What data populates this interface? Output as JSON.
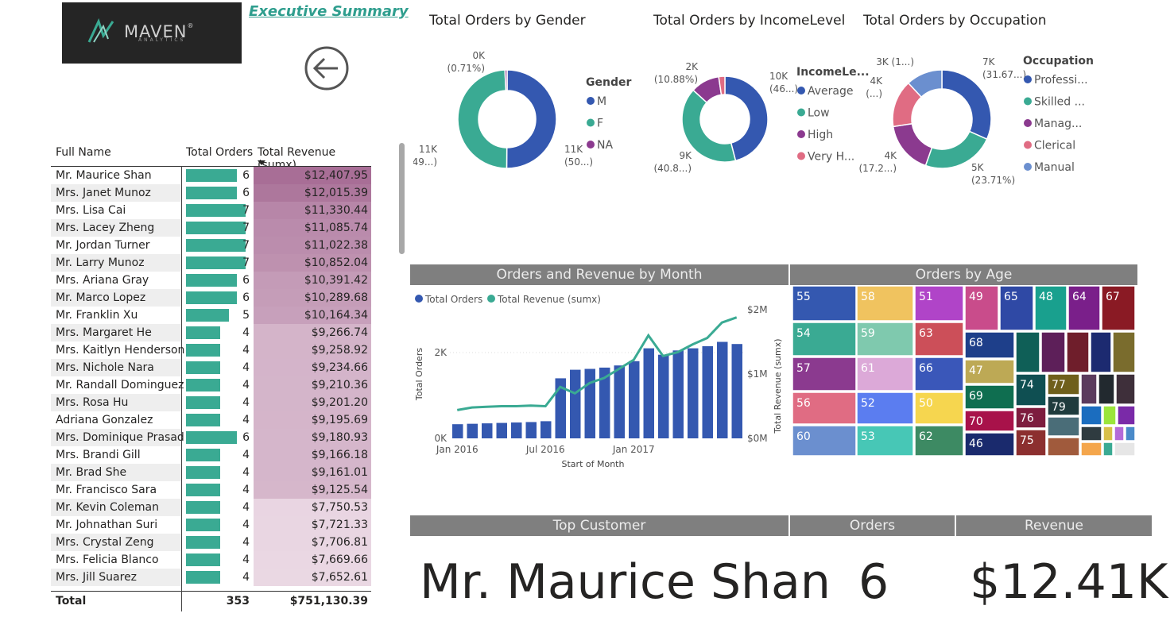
{
  "header": {
    "logo_text": "MAVEN",
    "logo_sub": "ANALYTICS",
    "link": "Executive Summary"
  },
  "colors": {
    "teal": "#3aaa93",
    "blue": "#3458b0",
    "purple": "#8b3a8f",
    "pink": "#e06c83",
    "lightblue": "#6b8fcf",
    "header_gray": "#7f7f7f"
  },
  "table": {
    "headers": [
      "Full Name",
      "Total Orders",
      "Total Revenue (sumx)"
    ],
    "rows": [
      {
        "name": "Mr. Maurice Shan",
        "orders": 6,
        "revenue": "$12,407.95",
        "rev_value": 12407.95
      },
      {
        "name": "Mrs. Janet Munoz",
        "orders": 6,
        "revenue": "$12,015.39",
        "rev_value": 12015.39
      },
      {
        "name": "Mrs. Lisa Cai",
        "orders": 7,
        "revenue": "$11,330.44",
        "rev_value": 11330.44
      },
      {
        "name": "Mrs. Lacey Zheng",
        "orders": 7,
        "revenue": "$11,085.74",
        "rev_value": 11085.74
      },
      {
        "name": "Mr. Jordan Turner",
        "orders": 7,
        "revenue": "$11,022.38",
        "rev_value": 11022.38
      },
      {
        "name": "Mr. Larry Munoz",
        "orders": 7,
        "revenue": "$10,852.04",
        "rev_value": 10852.04
      },
      {
        "name": "Mrs. Ariana Gray",
        "orders": 6,
        "revenue": "$10,391.42",
        "rev_value": 10391.42
      },
      {
        "name": "Mr. Marco Lopez",
        "orders": 6,
        "revenue": "$10,289.68",
        "rev_value": 10289.68
      },
      {
        "name": "Mr. Franklin Xu",
        "orders": 5,
        "revenue": "$10,164.34",
        "rev_value": 10164.34
      },
      {
        "name": "Mrs. Margaret He",
        "orders": 4,
        "revenue": "$9,266.74",
        "rev_value": 9266.74
      },
      {
        "name": "Mrs. Kaitlyn Henderson",
        "orders": 4,
        "revenue": "$9,258.92",
        "rev_value": 9258.92
      },
      {
        "name": "Mrs. Nichole Nara",
        "orders": 4,
        "revenue": "$9,234.66",
        "rev_value": 9234.66
      },
      {
        "name": "Mr. Randall Dominguez",
        "orders": 4,
        "revenue": "$9,210.36",
        "rev_value": 9210.36
      },
      {
        "name": "Mrs. Rosa Hu",
        "orders": 4,
        "revenue": "$9,201.20",
        "rev_value": 9201.2
      },
      {
        "name": "Adriana Gonzalez",
        "orders": 4,
        "revenue": "$9,195.69",
        "rev_value": 9195.69
      },
      {
        "name": "Mrs. Dominique Prasad",
        "orders": 6,
        "revenue": "$9,180.93",
        "rev_value": 9180.93
      },
      {
        "name": "Mrs. Brandi Gill",
        "orders": 4,
        "revenue": "$9,166.18",
        "rev_value": 9166.18
      },
      {
        "name": "Mr. Brad She",
        "orders": 4,
        "revenue": "$9,161.01",
        "rev_value": 9161.01
      },
      {
        "name": "Mr. Francisco Sara",
        "orders": 4,
        "revenue": "$9,125.54",
        "rev_value": 9125.54
      },
      {
        "name": "Mr. Kevin Coleman",
        "orders": 4,
        "revenue": "$7,750.53",
        "rev_value": 7750.53
      },
      {
        "name": "Mr. Johnathan Suri",
        "orders": 4,
        "revenue": "$7,721.33",
        "rev_value": 7721.33
      },
      {
        "name": "Mrs. Crystal Zeng",
        "orders": 4,
        "revenue": "$7,706.81",
        "rev_value": 7706.81
      },
      {
        "name": "Mrs. Felicia Blanco",
        "orders": 4,
        "revenue": "$7,669.66",
        "rev_value": 7669.66
      },
      {
        "name": "Mrs. Jill Suarez",
        "orders": 4,
        "revenue": "$7,652.61",
        "rev_value": 7652.61
      }
    ],
    "total_label": "Total",
    "total_orders": "353",
    "total_revenue": "$751,130.39"
  },
  "chart_data": [
    {
      "type": "pie",
      "title": "Total Orders by Gender",
      "legend_title": "Gender",
      "categories": [
        "M",
        "F",
        "NA"
      ],
      "values": [
        11000,
        11000,
        0
      ],
      "shares": [
        0.5,
        0.49,
        0.0071
      ],
      "labels": [
        [
          "11K",
          "(50...)"
        ],
        [
          "11K",
          "(49...)"
        ],
        [
          "0K",
          "(0.71%)"
        ]
      ],
      "colors": [
        "#3458b0",
        "#3aaa93",
        "#8b3a8f"
      ]
    },
    {
      "type": "pie",
      "title": "Total Orders by IncomeLevel",
      "legend_title": "IncomeLe...",
      "categories": [
        "Average",
        "Low",
        "High",
        "Very H..."
      ],
      "values": [
        10000,
        9000,
        2000,
        200
      ],
      "shares": [
        0.46,
        0.408,
        0.1088,
        0.0232
      ],
      "labels": [
        [
          "10K",
          "(46...)"
        ],
        [
          "9K",
          "(40.8...)"
        ],
        [
          "2K",
          "(10.88%)"
        ],
        [
          "",
          ""
        ]
      ],
      "colors": [
        "#3458b0",
        "#3aaa93",
        "#8b3a8f",
        "#e06c83"
      ]
    },
    {
      "type": "pie",
      "title": "Total Orders by Occupation",
      "legend_title": "Occupation",
      "categories": [
        "Professi...",
        "Skilled ...",
        "Manag...",
        "Clerical",
        "Manual"
      ],
      "values": [
        7000,
        5000,
        4000,
        4000,
        3000
      ],
      "shares": [
        0.3167,
        0.2371,
        0.172,
        0.155,
        0.1192
      ],
      "labels": [
        [
          "7K",
          "(31.67...)"
        ],
        [
          "5K",
          "(23.71%)"
        ],
        [
          "4K",
          "(17.2...)"
        ],
        [
          "4K",
          "(...)"
        ],
        [
          "3K (1...)",
          ""
        ]
      ],
      "colors": [
        "#3458b0",
        "#3aaa93",
        "#8b3a8f",
        "#e06c83",
        "#6b8fcf"
      ]
    },
    {
      "type": "bar",
      "title": "Orders and Revenue by Month",
      "xlabel": "Start of Month",
      "ylabel": "Total Orders",
      "y2label": "Total Revenue (sumx)",
      "x_ticks": [
        "Jan 2016",
        "Jul 2016",
        "Jan 2017"
      ],
      "y_ticks": [
        "0K",
        "2K"
      ],
      "y2_ticks": [
        "$0M",
        "$1M",
        "$2M"
      ],
      "ylim": [
        0,
        3000
      ],
      "y2lim": [
        0,
        2000000
      ],
      "series": [
        {
          "name": "Total Orders",
          "kind": "bar",
          "values": [
            330,
            340,
            350,
            360,
            370,
            380,
            400,
            1400,
            1600,
            1620,
            1650,
            1700,
            1800,
            2100,
            1950,
            2050,
            2100,
            2150,
            2250,
            2200
          ]
        },
        {
          "name": "Total Revenue (sumx)",
          "kind": "line",
          "values": [
            440000,
            480000,
            490000,
            500000,
            500000,
            510000,
            500000,
            800000,
            700000,
            860000,
            940000,
            1080000,
            1220000,
            1600000,
            1280000,
            1340000,
            1460000,
            1560000,
            1800000,
            1880000
          ]
        }
      ]
    },
    {
      "type": "heatmap",
      "title": "Orders by Age",
      "categories": [
        "55",
        "58",
        "51",
        "49",
        "65",
        "48",
        "64",
        "67",
        "54",
        "59",
        "63",
        "68",
        "57",
        "61",
        "66",
        "47",
        "56",
        "52",
        "50",
        "69",
        "74",
        "77",
        "70",
        "76",
        "79",
        "60",
        "53",
        "62",
        "46",
        "75"
      ]
    }
  ],
  "kpi": {
    "headers": [
      "Top Customer",
      "Orders",
      "Revenue"
    ],
    "name": "Mr. Maurice Shan",
    "orders": "6",
    "revenue": "$12.41K"
  }
}
